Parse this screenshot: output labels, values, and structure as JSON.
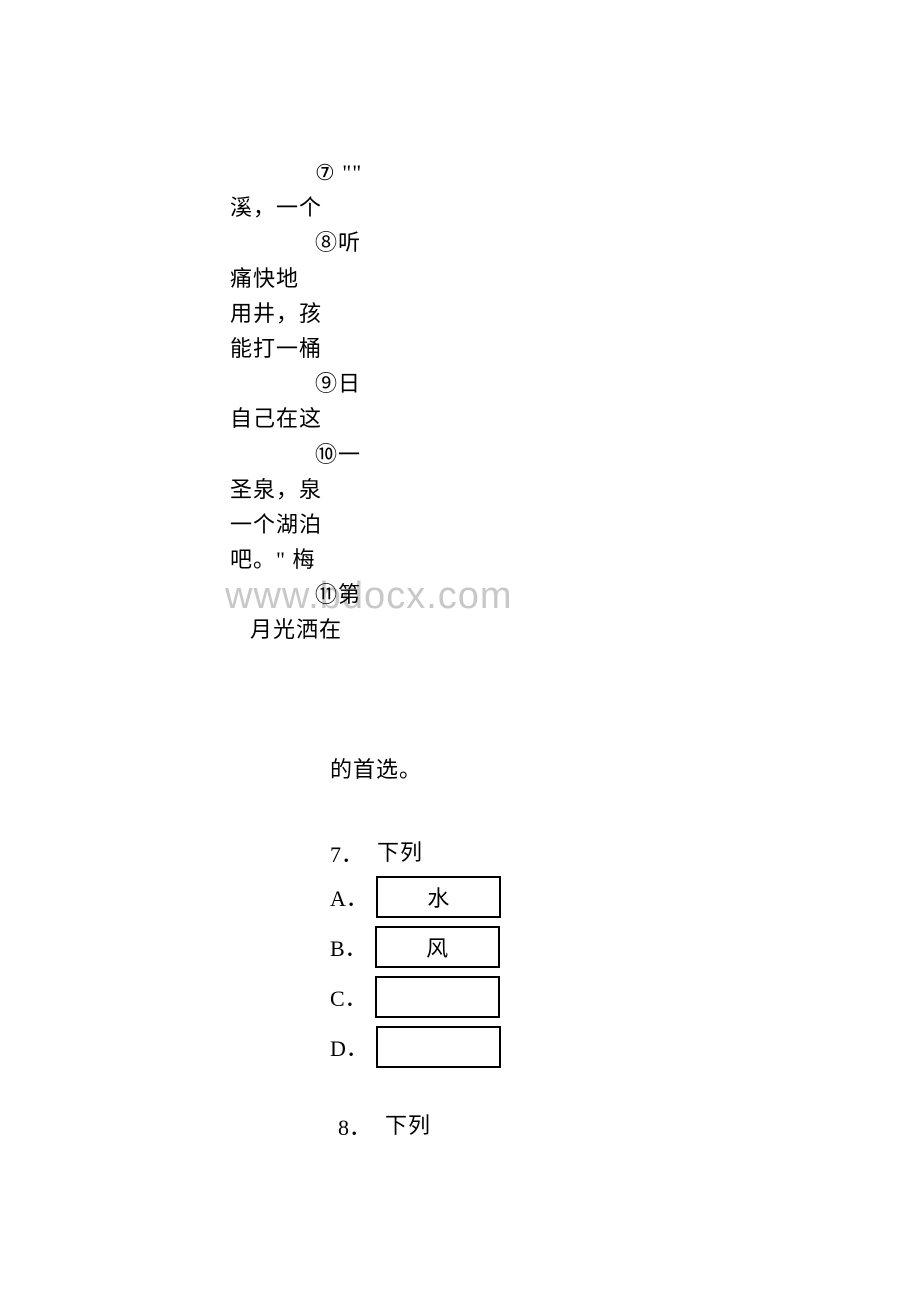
{
  "passage": {
    "lines": [
      {
        "text": "⑦  \"\"",
        "indent": "indent-1"
      },
      {
        "text": "溪，一个",
        "indent": "indent-0"
      },
      {
        "text": "⑧听",
        "indent": "indent-1"
      },
      {
        "text": "痛快地",
        "indent": "indent-0"
      },
      {
        "text": "用井，孩",
        "indent": "indent-0"
      },
      {
        "text": "能打一桶",
        "indent": "indent-0"
      },
      {
        "text": "⑨日",
        "indent": "indent-1"
      },
      {
        "text": "自己在这",
        "indent": "indent-0"
      },
      {
        "text": "⑩一",
        "indent": "indent-1"
      },
      {
        "text": "圣泉，泉",
        "indent": "indent-0"
      },
      {
        "text": "一个湖泊",
        "indent": "indent-0"
      },
      {
        "text": "吧。\" 梅",
        "indent": "indent-0"
      },
      {
        "text": "⑪第",
        "indent": "indent-1"
      },
      {
        "text": "月光洒在",
        "indent": "indent-half"
      }
    ]
  },
  "watermark": "www.bdocx.com",
  "section2": {
    "header": "的首选。",
    "q7": {
      "number": "7．",
      "stem": "下列",
      "options": [
        {
          "label": "A．",
          "text": "水"
        },
        {
          "label": "B．",
          "text": "风"
        },
        {
          "label": "C．",
          "text": ""
        },
        {
          "label": "D．",
          "text": ""
        }
      ]
    },
    "q8": {
      "number": "8．",
      "stem": "下列"
    }
  },
  "colors": {
    "text": "#000000",
    "background": "#ffffff",
    "watermark": "#c8c8c8",
    "box_border": "#000000"
  }
}
